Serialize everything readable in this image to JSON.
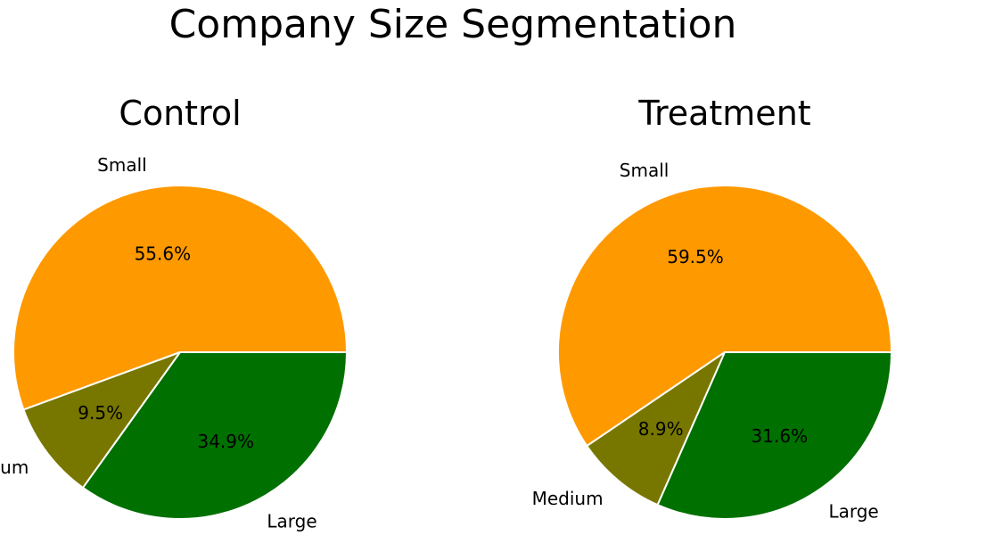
{
  "figure": {
    "title": "Company Size Segmentation"
  },
  "chart_data": [
    {
      "type": "pie",
      "title": "Control",
      "categories": [
        "Small",
        "Medium",
        "Large"
      ],
      "values": [
        55.6,
        9.5,
        34.9
      ],
      "value_labels": [
        "55.6%",
        "9.5%",
        "34.9%"
      ],
      "colors": [
        "#ff9900",
        "#777700",
        "#007000"
      ],
      "start_angle_deg": 0,
      "direction": "counterclockwise"
    },
    {
      "type": "pie",
      "title": "Treatment",
      "categories": [
        "Small",
        "Medium",
        "Large"
      ],
      "values": [
        59.5,
        8.9,
        31.6
      ],
      "value_labels": [
        "59.5%",
        "8.9%",
        "31.6%"
      ],
      "colors": [
        "#ff9900",
        "#777700",
        "#007000"
      ],
      "start_angle_deg": 0,
      "direction": "counterclockwise"
    }
  ]
}
